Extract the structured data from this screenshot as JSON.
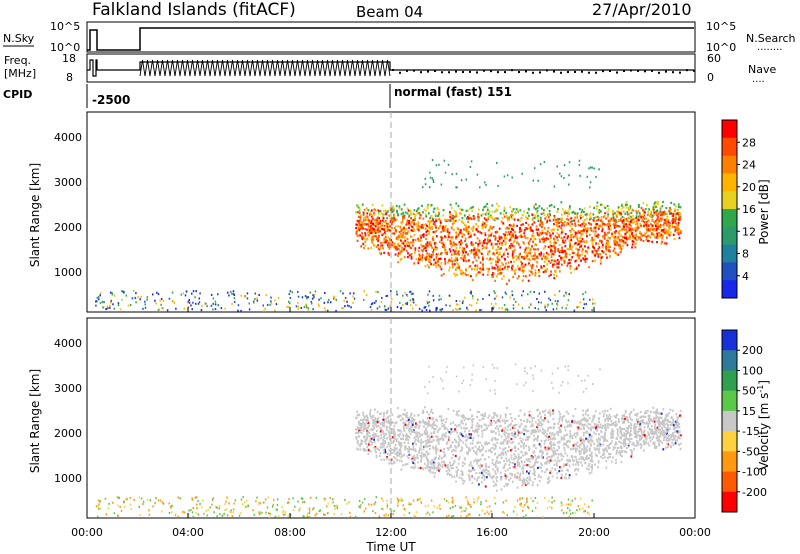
{
  "header": {
    "station": "Falkland Islands (fitACF)",
    "beam": "Beam 04",
    "date": "27/Apr/2010"
  },
  "nsky_panel": {
    "label": "N.Sky",
    "left_ticks": [
      "10^5",
      "10^0"
    ],
    "right_label": "N.Search",
    "right_ticks": [
      "10^5",
      "10^0"
    ]
  },
  "freq_panel": {
    "label_line1": "Freq.",
    "label_line2": "[MHz]",
    "left_ticks": [
      "18",
      "8"
    ],
    "right_label": "Nave",
    "right_ticks": [
      "60",
      "0"
    ]
  },
  "cpid": {
    "label": "CPID",
    "first_mode": "-2500",
    "second_mode": "normal (fast) 151"
  },
  "power_panel": {
    "ylabel": "Slant Range [km]",
    "yticks": [
      "4000",
      "3000",
      "2000",
      "1000"
    ],
    "colorbar_label": "Power [dB]",
    "colorbar_ticks": [
      "28",
      "24",
      "20",
      "16",
      "12",
      "8",
      "4"
    ],
    "colorbar_colors": [
      "#ff0000",
      "#ff4a00",
      "#ff7f00",
      "#ffb400",
      "#e6d020",
      "#2ea84a",
      "#2d9a6a",
      "#2080a0",
      "#2050c0",
      "#1828e8"
    ]
  },
  "velocity_panel": {
    "ylabel": "Slant Range [km]",
    "yticks": [
      "4000",
      "3000",
      "2000",
      "1000"
    ],
    "colorbar_label": "Velocity [m s",
    "colorbar_label_sup": "-1",
    "colorbar_label_end": "]",
    "colorbar_ticks": [
      "200",
      "100",
      "50",
      "15",
      "-15",
      "-50",
      "-100",
      "-200"
    ],
    "colorbar_colors": [
      "#1830d8",
      "#2e7a9a",
      "#2ea04e",
      "#5cc84a",
      "#c8c8c8",
      "#ffd040",
      "#ff9a10",
      "#ff5a00",
      "#ff0000"
    ]
  },
  "xaxis": {
    "ticks": [
      "00:00",
      "04:00",
      "08:00",
      "12:00",
      "16:00",
      "20:00",
      "00:00"
    ],
    "label": "Time UT"
  }
}
